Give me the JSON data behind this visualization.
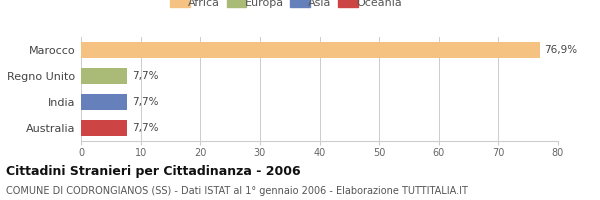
{
  "categories": [
    "Australia",
    "India",
    "Regno Unito",
    "Marocco"
  ],
  "values": [
    7.7,
    7.7,
    7.7,
    76.9
  ],
  "bar_colors": [
    "#cc4444",
    "#6680bb",
    "#aabb77",
    "#f5c282"
  ],
  "continent_colors": {
    "Africa": "#f5c282",
    "Europa": "#aabb77",
    "Asia": "#6680bb",
    "Oceania": "#cc4444"
  },
  "legend_labels": [
    "Africa",
    "Europa",
    "Asia",
    "Oceania"
  ],
  "value_labels": [
    "7,7%",
    "7,7%",
    "7,7%",
    "76,9%"
  ],
  "xlim": [
    0,
    80
  ],
  "xticks": [
    0,
    10,
    20,
    30,
    40,
    50,
    60,
    70,
    80
  ],
  "title": "Cittadini Stranieri per Cittadinanza - 2006",
  "subtitle": "COMUNE DI CODRONGIANOS (SS) - Dati ISTAT al 1° gennaio 2006 - Elaborazione TUTTITALIA.IT",
  "background_color": "#ffffff",
  "bar_height": 0.6,
  "grid_color": "#cccccc",
  "title_fontsize": 9,
  "subtitle_fontsize": 7,
  "label_fontsize": 8,
  "tick_fontsize": 7,
  "value_fontsize": 7.5,
  "legend_fontsize": 8
}
